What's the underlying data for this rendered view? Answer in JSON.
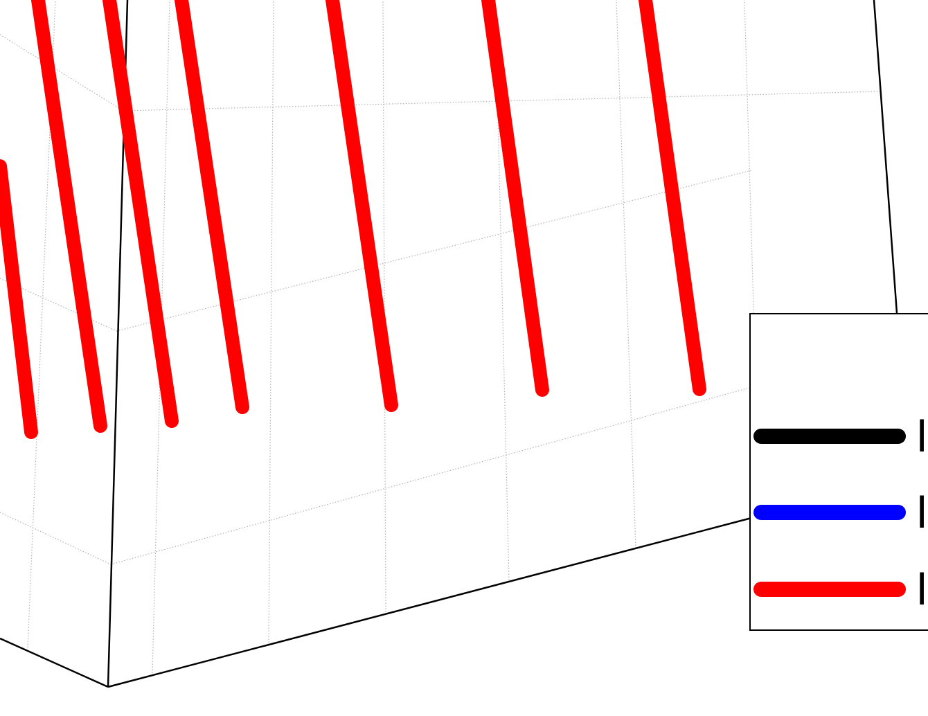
{
  "chart_data": {
    "type": "line",
    "view": "3d-perspective",
    "grid": true,
    "colors": {
      "axes": "#000000",
      "grid": "#b0b0b0"
    },
    "series": [
      {
        "color": "#000000",
        "label": "l"
      },
      {
        "color": "#0000ff",
        "label": "l"
      },
      {
        "color": "#ff0000",
        "label": "l"
      }
    ],
    "legend": {
      "placement": "right"
    }
  }
}
